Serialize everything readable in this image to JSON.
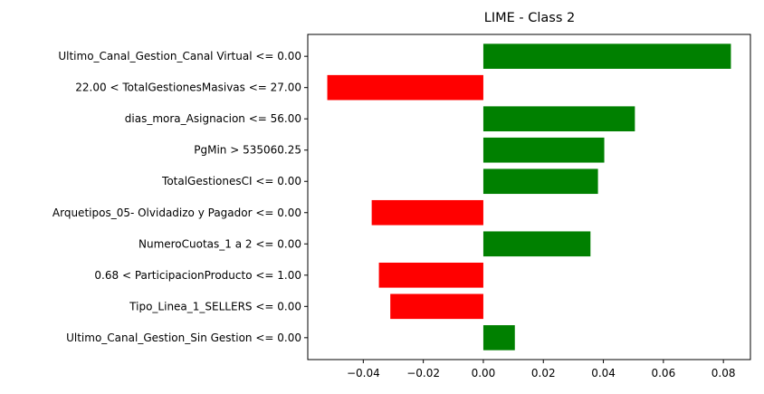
{
  "chart_data": {
    "type": "bar",
    "orientation": "horizontal",
    "title": "LIME - Class 2",
    "xlabel": "",
    "ylabel": "",
    "categories": [
      "Ultimo_Canal_Gestion_Canal Virtual <= 0.00",
      "22.00 < TotalGestionesMasivas <= 27.00",
      "dias_mora_Asignacion <= 56.00",
      "PgMin > 535060.25",
      "TotalGestionesCI <= 0.00",
      "Arquetipos_05- Olvidadizo y Pagador <= 0.00",
      "NumeroCuotas_1 a 2 <= 0.00",
      "0.68 < ParticipacionProducto <= 1.00",
      "Tipo_Linea_1_SELLERS <= 0.00",
      "Ultimo_Canal_Gestion_Sin Gestion <= 0.00"
    ],
    "values": [
      0.0825,
      -0.052,
      0.0505,
      0.0403,
      0.0382,
      -0.0372,
      0.0357,
      -0.0348,
      -0.031,
      0.0105
    ],
    "xlim": [
      -0.0585,
      0.089
    ],
    "xticks": [
      -0.04,
      -0.02,
      0.0,
      0.02,
      0.04,
      0.06,
      0.08
    ],
    "xtick_labels": [
      "−0.04",
      "−0.02",
      "0.00",
      "0.02",
      "0.04",
      "0.06",
      "0.08"
    ],
    "colors": {
      "positive": "#008000",
      "negative": "#ff0000"
    },
    "grid": false,
    "legend": "none"
  }
}
